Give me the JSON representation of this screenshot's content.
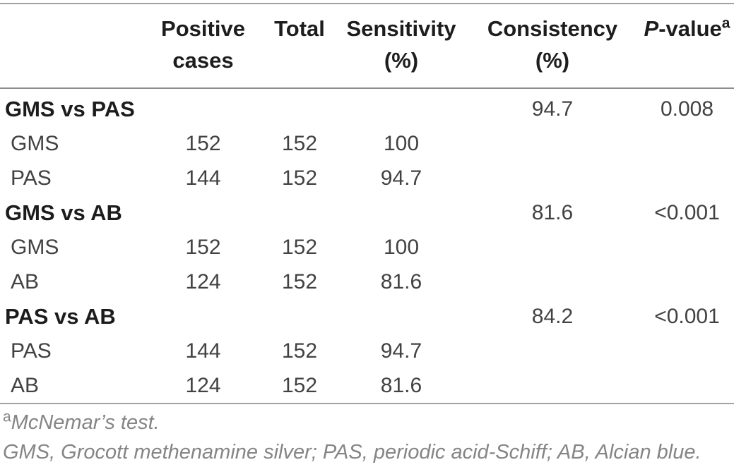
{
  "table": {
    "headers": {
      "label": {
        "line1": "",
        "line2": ""
      },
      "positive": {
        "line1": "Positive",
        "line2": "cases"
      },
      "total": {
        "line1": "Total",
        "line2": ""
      },
      "sensitivity": {
        "line1": "Sensitivity",
        "line2": "(%)"
      },
      "consistency": {
        "line1": "Consistency",
        "line2": "(%)"
      },
      "pvalue": {
        "p": "P",
        "rest": "-value",
        "sup": "a"
      }
    },
    "rows": [
      {
        "label": "GMS vs PAS",
        "positive": "",
        "total": "",
        "sensitivity": "",
        "consistency": "94.7",
        "pvalue": "0.008"
      },
      {
        "label": "GMS",
        "positive": "152",
        "total": "152",
        "sensitivity": "100",
        "consistency": "",
        "pvalue": ""
      },
      {
        "label": "PAS",
        "positive": "144",
        "total": "152",
        "sensitivity": "94.7",
        "consistency": "",
        "pvalue": ""
      },
      {
        "label": "GMS vs AB",
        "positive": "",
        "total": "",
        "sensitivity": "",
        "consistency": "81.6",
        "pvalue": "<0.001"
      },
      {
        "label": "GMS",
        "positive": "152",
        "total": "152",
        "sensitivity": "100",
        "consistency": "",
        "pvalue": ""
      },
      {
        "label": "AB",
        "positive": "124",
        "total": "152",
        "sensitivity": "81.6",
        "consistency": "",
        "pvalue": ""
      },
      {
        "label": "PAS vs AB",
        "positive": "",
        "total": "",
        "sensitivity": "",
        "consistency": "84.2",
        "pvalue": "<0.001"
      },
      {
        "label": "PAS",
        "positive": "144",
        "total": "152",
        "sensitivity": "94.7",
        "consistency": "",
        "pvalue": ""
      },
      {
        "label": "AB",
        "positive": "124",
        "total": "152",
        "sensitivity": "81.6",
        "consistency": "",
        "pvalue": ""
      }
    ]
  },
  "footnotes": {
    "sup": "a",
    "note1": "McNemar’s test.",
    "note2": "GMS, Grocott methenamine silver; PAS, periodic acid-Schiff; AB, Alcian blue."
  },
  "colors": {
    "rule_outer": "#a2a2a2",
    "rule_header": "#8d8d8d",
    "text_dark": "#1c1c1c",
    "text_body": "#424242",
    "text_footnote": "#858585"
  }
}
